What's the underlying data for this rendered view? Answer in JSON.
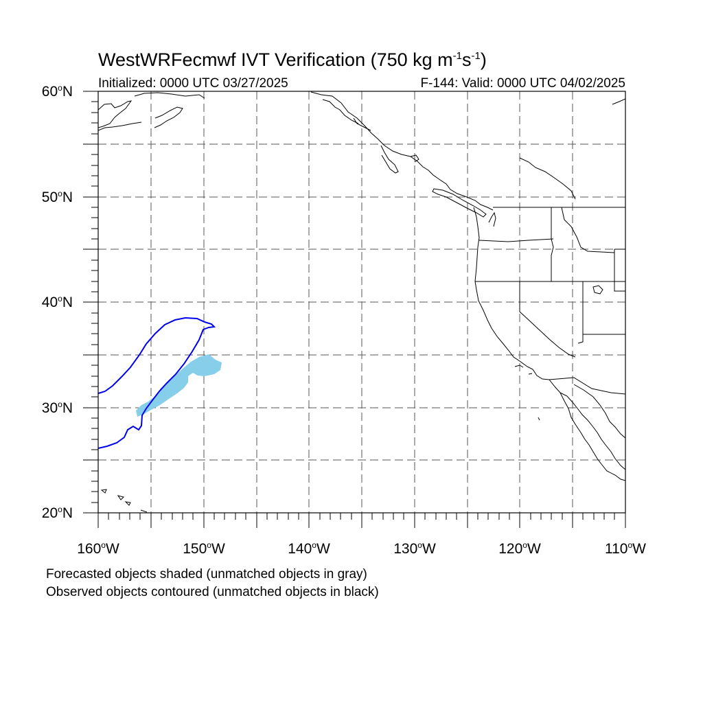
{
  "title": {
    "main": "WestWRFecmwf IVT Verification (750 kg m",
    "exp1": "-1",
    "mid": "s",
    "exp2": "-1",
    "end": ")"
  },
  "subtitle": {
    "initialized": "Initialized: 0000 UTC 03/27/2025",
    "valid": "F-144: Valid: 0000 UTC 04/02/2025"
  },
  "axes": {
    "degree_symbol": "o",
    "lat_labels": [
      {
        "value": "60",
        "hemi": "N"
      },
      {
        "value": "50",
        "hemi": "N"
      },
      {
        "value": "40",
        "hemi": "N"
      },
      {
        "value": "30",
        "hemi": "N"
      },
      {
        "value": "20",
        "hemi": "N"
      }
    ],
    "lon_labels": [
      {
        "value": "160",
        "hemi": "W"
      },
      {
        "value": "150",
        "hemi": "W"
      },
      {
        "value": "140",
        "hemi": "W"
      },
      {
        "value": "130",
        "hemi": "W"
      },
      {
        "value": "120",
        "hemi": "W"
      },
      {
        "value": "110",
        "hemi": "W"
      }
    ],
    "lon_range": [
      -160,
      -110
    ],
    "lat_range": [
      20,
      60
    ],
    "grid": "dashed every 5 degrees"
  },
  "footer": {
    "line1": "Forecasted objects shaded (unmatched objects in gray)",
    "line2": "Observed objects contoured (unmatched objects in black)"
  },
  "colors": {
    "forecast_fill": "#87ceeb",
    "observed_contour": "#0000ee",
    "coast": "#000000",
    "grid": "#555555"
  }
}
